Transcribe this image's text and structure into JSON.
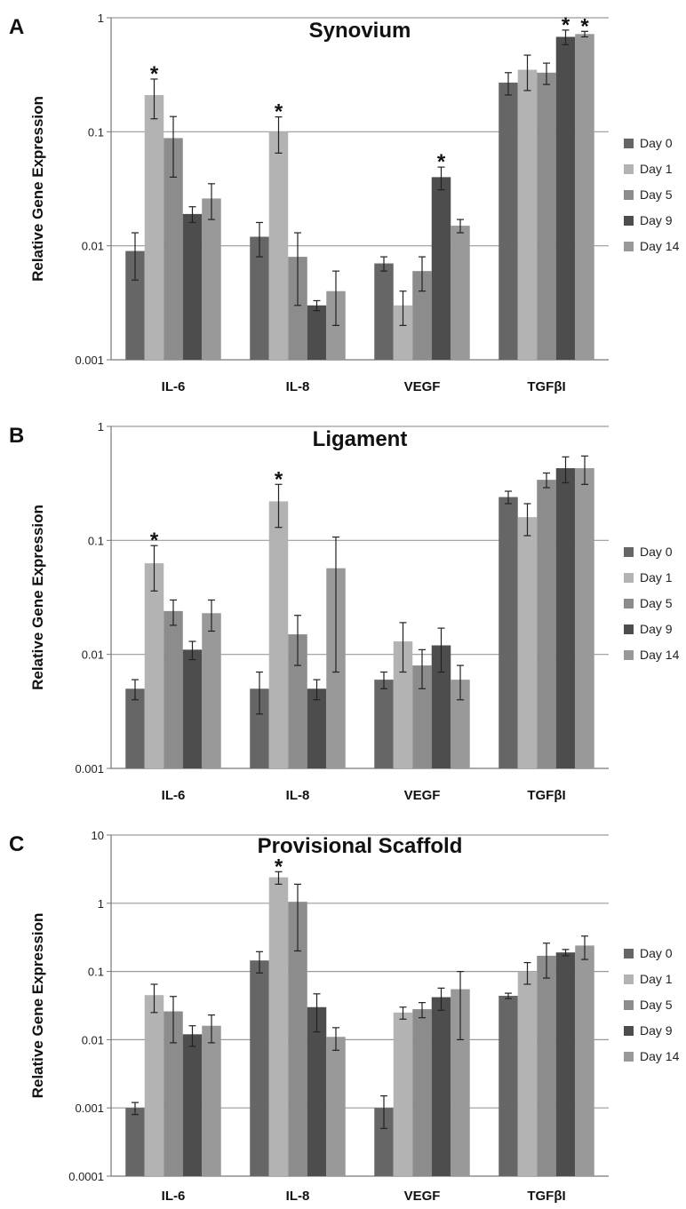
{
  "chart_data": [
    {
      "type": "bar",
      "panel_label": "A",
      "title": "Synovium",
      "ylabel": "Relative Gene Expression",
      "scale": "log",
      "ylim": [
        0.001,
        1
      ],
      "yticks": [
        "0.001",
        "0.01",
        "0.1",
        "1"
      ],
      "grid": true,
      "legend_position": "right",
      "categories": [
        "IL-6",
        "IL-8",
        "VEGF",
        "TGFβI"
      ],
      "series": [
        {
          "name": "Day 0",
          "color": "#666666",
          "values": [
            0.009,
            0.012,
            0.007,
            0.27
          ],
          "error": [
            0.004,
            0.004,
            0.001,
            0.06
          ],
          "significant": [
            false,
            false,
            false,
            false
          ]
        },
        {
          "name": "Day 1",
          "color": "#b3b3b3",
          "values": [
            0.21,
            0.1,
            0.003,
            0.35
          ],
          "error": [
            0.08,
            0.035,
            0.001,
            0.12
          ],
          "significant": [
            true,
            true,
            false,
            false
          ]
        },
        {
          "name": "Day 5",
          "color": "#8c8c8c",
          "values": [
            0.088,
            0.008,
            0.006,
            0.33
          ],
          "error": [
            0.048,
            0.005,
            0.002,
            0.07
          ],
          "significant": [
            false,
            false,
            false,
            false
          ]
        },
        {
          "name": "Day 9",
          "color": "#4d4d4d",
          "values": [
            0.019,
            0.003,
            0.04,
            0.68
          ],
          "error": [
            0.003,
            0.0003,
            0.009,
            0.1
          ],
          "significant": [
            false,
            false,
            true,
            true
          ]
        },
        {
          "name": "Day 14",
          "color": "#999999",
          "values": [
            0.026,
            0.004,
            0.015,
            0.72
          ],
          "error": [
            0.009,
            0.002,
            0.002,
            0.04
          ],
          "significant": [
            false,
            false,
            false,
            true
          ]
        }
      ]
    },
    {
      "type": "bar",
      "panel_label": "B",
      "title": "Ligament",
      "ylabel": "Relative Gene Expression",
      "scale": "log",
      "ylim": [
        0.001,
        1
      ],
      "yticks": [
        "0.001",
        "0.01",
        "0.1",
        "1"
      ],
      "grid": true,
      "legend_position": "right",
      "categories": [
        "IL-6",
        "IL-8",
        "VEGF",
        "TGFβI"
      ],
      "series": [
        {
          "name": "Day 0",
          "color": "#666666",
          "values": [
            0.005,
            0.005,
            0.006,
            0.24
          ],
          "error": [
            0.001,
            0.002,
            0.001,
            0.03
          ],
          "significant": [
            false,
            false,
            false,
            false
          ]
        },
        {
          "name": "Day 1",
          "color": "#b3b3b3",
          "values": [
            0.063,
            0.22,
            0.013,
            0.16
          ],
          "error": [
            0.027,
            0.09,
            0.006,
            0.05
          ],
          "significant": [
            true,
            true,
            false,
            false
          ]
        },
        {
          "name": "Day 5",
          "color": "#8c8c8c",
          "values": [
            0.024,
            0.015,
            0.008,
            0.34
          ],
          "error": [
            0.006,
            0.007,
            0.003,
            0.05
          ],
          "significant": [
            false,
            false,
            false,
            false
          ]
        },
        {
          "name": "Day 9",
          "color": "#4d4d4d",
          "values": [
            0.011,
            0.005,
            0.012,
            0.43
          ],
          "error": [
            0.002,
            0.001,
            0.005,
            0.11
          ],
          "significant": [
            false,
            false,
            false,
            false
          ]
        },
        {
          "name": "Day 14",
          "color": "#999999",
          "values": [
            0.023,
            0.057,
            0.006,
            0.43
          ],
          "error": [
            0.007,
            0.05,
            0.002,
            0.12
          ],
          "significant": [
            false,
            false,
            false,
            false
          ]
        }
      ]
    },
    {
      "type": "bar",
      "panel_label": "C",
      "title": "Provisional Scaffold",
      "ylabel": "Relative Gene Expression",
      "scale": "log",
      "ylim": [
        0.0001,
        10
      ],
      "yticks": [
        "0.0001",
        "0.001",
        "0.01",
        "0.1",
        "1",
        "10"
      ],
      "grid": true,
      "legend_position": "right",
      "categories": [
        "IL-6",
        "IL-8",
        "VEGF",
        "TGFβI"
      ],
      "series": [
        {
          "name": "Day 0",
          "color": "#666666",
          "values": [
            0.001,
            0.145,
            0.001,
            0.044
          ],
          "error": [
            0.0002,
            0.05,
            0.0005,
            0.004
          ],
          "significant": [
            false,
            false,
            false,
            false
          ]
        },
        {
          "name": "Day 1",
          "color": "#b3b3b3",
          "values": [
            0.045,
            2.4,
            0.025,
            0.1
          ],
          "error": [
            0.02,
            0.5,
            0.005,
            0.035
          ],
          "significant": [
            false,
            true,
            false,
            false
          ]
        },
        {
          "name": "Day 5",
          "color": "#8c8c8c",
          "values": [
            0.026,
            1.05,
            0.028,
            0.17
          ],
          "error": [
            0.017,
            0.85,
            0.007,
            0.09
          ],
          "significant": [
            false,
            false,
            false,
            false
          ]
        },
        {
          "name": "Day 9",
          "color": "#4d4d4d",
          "values": [
            0.012,
            0.03,
            0.042,
            0.19
          ],
          "error": [
            0.004,
            0.017,
            0.015,
            0.02
          ],
          "significant": [
            false,
            false,
            false,
            false
          ]
        },
        {
          "name": "Day 14",
          "color": "#999999",
          "values": [
            0.016,
            0.011,
            0.055,
            0.24
          ],
          "error": [
            0.007,
            0.004,
            0.045,
            0.09
          ],
          "significant": [
            false,
            false,
            false,
            false
          ]
        }
      ]
    }
  ]
}
